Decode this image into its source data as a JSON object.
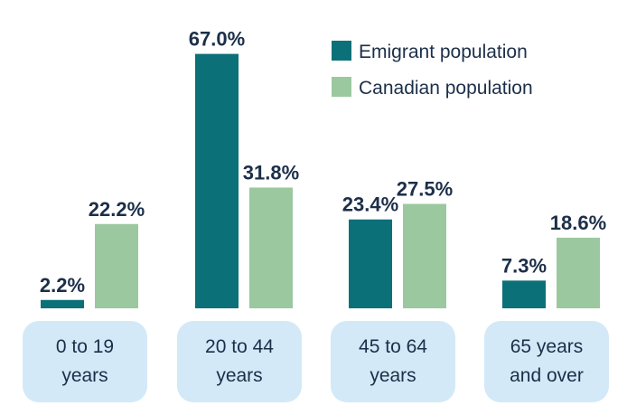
{
  "chart_data": {
    "type": "bar",
    "title": "",
    "xlabel": "",
    "ylabel": "",
    "ylim": [
      0,
      70
    ],
    "grid": false,
    "legend_position": "top-right",
    "value_suffix": "%",
    "categories": [
      [
        "0 to 19",
        "years"
      ],
      [
        "20 to 44",
        "years"
      ],
      [
        "45 to 64",
        "years"
      ],
      [
        "65 years",
        "and over"
      ]
    ],
    "series": [
      {
        "name": "Emigrant population",
        "color": "#0c7078",
        "values": [
          2.2,
          67.0,
          23.4,
          7.3
        ]
      },
      {
        "name": "Canadian population",
        "color": "#9bc89f",
        "values": [
          22.2,
          31.8,
          27.5,
          18.6
        ]
      }
    ],
    "category_box_color": "#d3e9f8",
    "text_color": "#1c2f49"
  }
}
